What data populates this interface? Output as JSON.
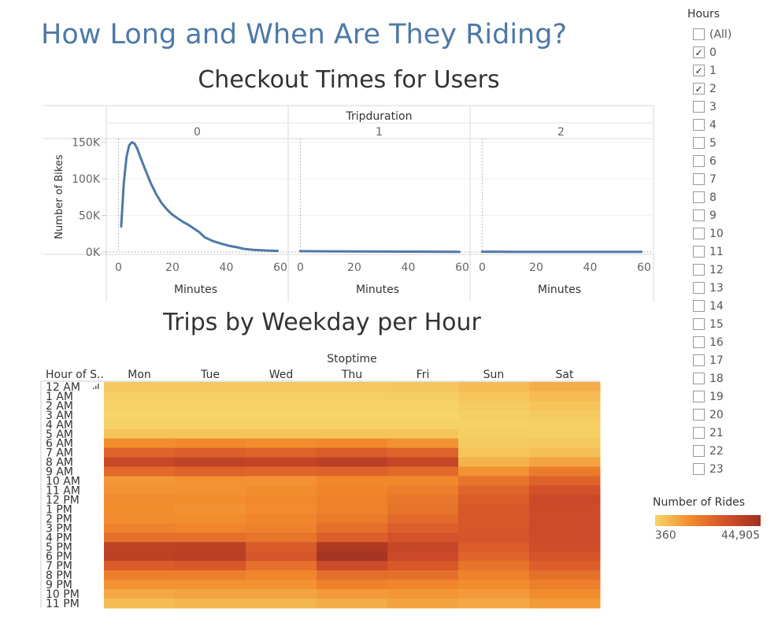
{
  "title": "How Long and When Are They Riding?",
  "filter": {
    "title": "Hours",
    "items": [
      {
        "label": "(All)",
        "checked": false
      },
      {
        "label": "0",
        "checked": true
      },
      {
        "label": "1",
        "checked": true
      },
      {
        "label": "2",
        "checked": true
      },
      {
        "label": "3",
        "checked": false
      },
      {
        "label": "4",
        "checked": false
      },
      {
        "label": "5",
        "checked": false
      },
      {
        "label": "6",
        "checked": false
      },
      {
        "label": "7",
        "checked": false
      },
      {
        "label": "8",
        "checked": false
      },
      {
        "label": "9",
        "checked": false
      },
      {
        "label": "10",
        "checked": false
      },
      {
        "label": "11",
        "checked": false
      },
      {
        "label": "12",
        "checked": false
      },
      {
        "label": "13",
        "checked": false
      },
      {
        "label": "14",
        "checked": false
      },
      {
        "label": "15",
        "checked": false
      },
      {
        "label": "16",
        "checked": false
      },
      {
        "label": "17",
        "checked": false
      },
      {
        "label": "18",
        "checked": false
      },
      {
        "label": "19",
        "checked": false
      },
      {
        "label": "20",
        "checked": false
      },
      {
        "label": "21",
        "checked": false
      },
      {
        "label": "22",
        "checked": false
      },
      {
        "label": "23",
        "checked": false
      }
    ],
    "check_glyph": "✓"
  },
  "legend": {
    "title": "Number of Rides",
    "min_label": "360",
    "max_label": "44,905"
  },
  "chart_data": [
    {
      "type": "line",
      "title": "Checkout Times for Users",
      "panel_header": "Tripduration",
      "xlabel": "Minutes",
      "ylabel": "Number of Bikes",
      "ylim": [
        0,
        155000
      ],
      "yticks": [
        0,
        50000,
        100000,
        150000
      ],
      "ytick_labels": [
        "0K",
        "50K",
        "100K",
        "150K"
      ],
      "xlim": [
        -1,
        60
      ],
      "xticks": [
        0,
        20,
        40,
        60
      ],
      "line_color": "#4e79a7",
      "panels": [
        {
          "name": "0",
          "x": [
            1,
            2,
            3,
            4,
            5,
            6,
            7,
            8,
            10,
            12,
            14,
            16,
            18,
            20,
            22,
            24,
            26,
            28,
            30,
            32,
            35,
            38,
            41,
            44,
            47,
            50,
            55,
            59
          ],
          "y": [
            35000,
            95000,
            130000,
            146000,
            150000,
            148000,
            141000,
            131000,
            112000,
            94000,
            79000,
            67000,
            58000,
            51000,
            46000,
            41000,
            37000,
            32000,
            27000,
            20000,
            15000,
            11500,
            8500,
            6500,
            4000,
            3000,
            2000,
            1500
          ]
        },
        {
          "name": "1",
          "x": [
            0,
            10,
            20,
            30,
            40,
            50,
            59
          ],
          "y": [
            1200,
            1000,
            800,
            600,
            500,
            400,
            300
          ]
        },
        {
          "name": "2",
          "x": [
            0,
            10,
            20,
            30,
            40,
            50,
            59
          ],
          "y": [
            400,
            350,
            300,
            300,
            250,
            250,
            200
          ]
        }
      ]
    },
    {
      "type": "heatmap",
      "title": "Trips by Weekday per Hour",
      "column_header": "Stoptime",
      "row_header": "Hour of S..",
      "columns": [
        "Mon",
        "Tue",
        "Wed",
        "Thu",
        "Fri",
        "Sun",
        "Sat"
      ],
      "rows": [
        "12 AM",
        "1 AM",
        "2 AM",
        "3 AM",
        "4 AM",
        "5 AM",
        "6 AM",
        "7 AM",
        "8 AM",
        "9 AM",
        "10 AM",
        "11 AM",
        "12 PM",
        "1 PM",
        "2 PM",
        "3 PM",
        "4 PM",
        "5 PM",
        "6 PM",
        "7 PM",
        "8 PM",
        "9 PM",
        "10 PM",
        "11 PM"
      ],
      "values": [
        [
          0.06,
          0.06,
          0.06,
          0.06,
          0.07,
          0.12,
          0.18
        ],
        [
          0.03,
          0.03,
          0.03,
          0.03,
          0.04,
          0.08,
          0.12
        ],
        [
          0.02,
          0.02,
          0.02,
          0.02,
          0.02,
          0.05,
          0.08
        ],
        [
          0.01,
          0.01,
          0.01,
          0.01,
          0.01,
          0.03,
          0.05
        ],
        [
          0.02,
          0.02,
          0.02,
          0.02,
          0.02,
          0.02,
          0.03
        ],
        [
          0.08,
          0.08,
          0.08,
          0.08,
          0.08,
          0.03,
          0.03
        ],
        [
          0.32,
          0.34,
          0.32,
          0.34,
          0.3,
          0.05,
          0.06
        ],
        [
          0.55,
          0.58,
          0.56,
          0.6,
          0.55,
          0.08,
          0.1
        ],
        [
          0.75,
          0.8,
          0.78,
          0.83,
          0.76,
          0.16,
          0.22
        ],
        [
          0.52,
          0.56,
          0.54,
          0.56,
          0.52,
          0.3,
          0.42
        ],
        [
          0.28,
          0.3,
          0.3,
          0.34,
          0.34,
          0.46,
          0.56
        ],
        [
          0.3,
          0.3,
          0.32,
          0.36,
          0.4,
          0.55,
          0.68
        ],
        [
          0.33,
          0.32,
          0.34,
          0.38,
          0.44,
          0.6,
          0.74
        ],
        [
          0.32,
          0.3,
          0.33,
          0.38,
          0.46,
          0.62,
          0.72
        ],
        [
          0.33,
          0.32,
          0.35,
          0.42,
          0.52,
          0.62,
          0.72
        ],
        [
          0.38,
          0.36,
          0.38,
          0.48,
          0.58,
          0.63,
          0.72
        ],
        [
          0.48,
          0.48,
          0.46,
          0.58,
          0.66,
          0.64,
          0.72
        ],
        [
          0.8,
          0.82,
          0.6,
          0.9,
          0.76,
          0.6,
          0.7
        ],
        [
          0.82,
          0.84,
          0.64,
          0.96,
          0.74,
          0.55,
          0.65
        ],
        [
          0.6,
          0.62,
          0.48,
          0.72,
          0.62,
          0.46,
          0.58
        ],
        [
          0.4,
          0.4,
          0.36,
          0.5,
          0.48,
          0.38,
          0.48
        ],
        [
          0.3,
          0.3,
          0.3,
          0.38,
          0.36,
          0.32,
          0.4
        ],
        [
          0.2,
          0.22,
          0.22,
          0.26,
          0.28,
          0.26,
          0.32
        ],
        [
          0.12,
          0.14,
          0.14,
          0.18,
          0.22,
          0.2,
          0.26
        ]
      ],
      "value_scale": "normalized 0-1 between legend min and max",
      "color_stops": [
        "#f6d66a",
        "#f28a2c",
        "#d4502a",
        "#a0301f"
      ]
    }
  ]
}
